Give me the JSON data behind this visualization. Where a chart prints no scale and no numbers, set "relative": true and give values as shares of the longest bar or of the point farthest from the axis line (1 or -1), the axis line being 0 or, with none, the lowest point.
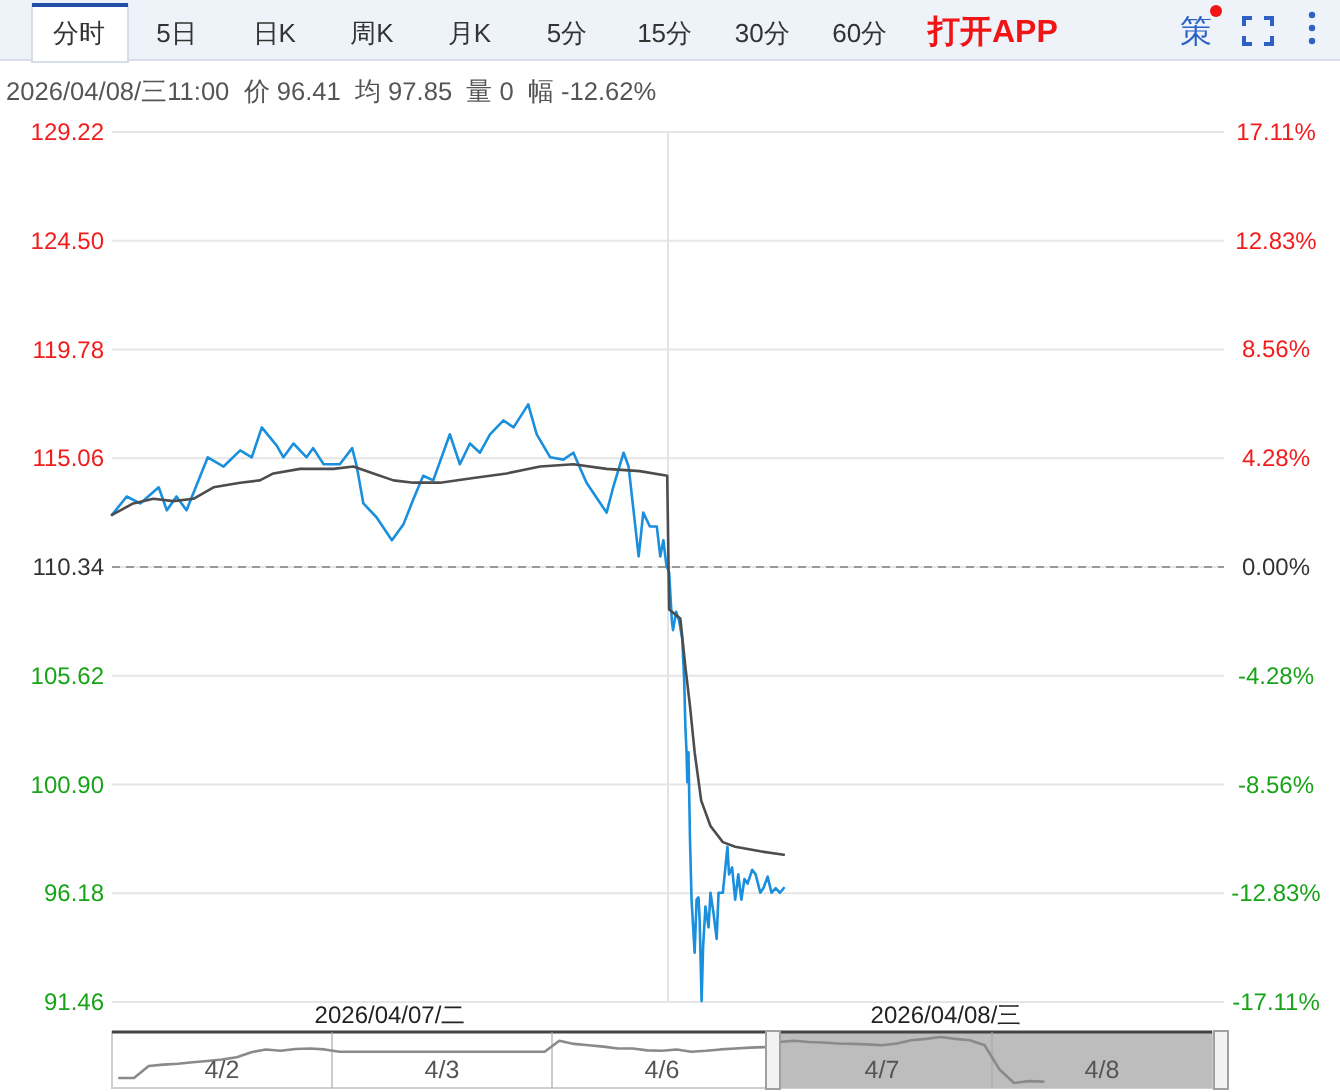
{
  "chart_data": [
    {
      "type": "line",
      "subtitle": "2026/04/08/三11:00  价 96.41  均 97.85  量 0  幅 -12.62%",
      "annotations": [
        "分时",
        "5日",
        "日K",
        "周K",
        "月K",
        "5分",
        "15分",
        "30分",
        "60分",
        "打开APP",
        "策"
      ],
      "x": [
        "2026-04-07T06:00",
        "2026-04-07T06:38",
        "2026-04-07T07:13",
        "2026-04-07T08:01",
        "2026-04-07T08:22",
        "2026-04-07T08:47",
        "2026-04-07T09:13",
        "2026-04-07T10:08",
        "2026-04-07T10:49",
        "2026-04-07T11:32",
        "2026-04-07T12:02",
        "2026-04-07T12:28",
        "2026-04-07T13:07",
        "2026-04-07T13:24",
        "2026-04-07T13:50",
        "2026-04-07T14:24",
        "2026-04-07T14:41",
        "2026-04-07T15:08",
        "2026-04-07T15:50",
        "2026-04-07T16:22",
        "2026-04-07T16:34",
        "2026-04-07T16:51",
        "2026-04-07T17:25",
        "2026-04-07T18:05",
        "2026-04-07T18:35",
        "2026-04-07T19:01",
        "2026-04-07T19:26",
        "2026-04-07T19:52",
        "2026-04-07T20:35",
        "2026-04-07T21:01",
        "2026-04-07T21:27",
        "2026-04-07T21:53",
        "2026-04-07T22:19",
        "2026-04-07T22:54",
        "2026-04-07T23:20",
        "2026-04-07T23:58",
        "2026-04-08T00:20",
        "2026-04-08T00:55",
        "2026-04-08T01:29",
        "2026-04-08T01:55",
        "2026-04-08T02:29",
        "2026-04-08T03:21",
        "2026-04-08T03:38",
        "2026-04-08T04:05",
        "2026-04-08T04:18",
        "2026-04-08T04:44",
        "2026-04-08T04:56",
        "2026-04-08T05:13",
        "2026-04-08T05:31",
        "2026-04-08T05:40",
        "2026-04-08T05:48",
        "2026-04-08T05:56",
        "2026-04-08T06:03",
        "2026-04-08T06:10",
        "2026-04-08T06:13",
        "2026-04-08T06:21",
        "2026-04-08T06:29",
        "2026-04-08T06:37",
        "2026-04-08T06:42",
        "2026-04-08T06:45",
        "2026-04-08T06:48",
        "2026-04-08T06:50",
        "2026-04-08T06:53",
        "2026-04-08T06:57",
        "2026-04-08T07:01",
        "2026-04-08T07:09",
        "2026-04-08T07:14",
        "2026-04-08T07:19",
        "2026-04-08T07:22",
        "2026-04-08T07:27",
        "2026-04-08T07:31",
        "2026-04-08T07:37",
        "2026-04-08T07:45",
        "2026-04-08T07:50",
        "2026-04-08T07:58",
        "2026-04-08T08:06",
        "2026-04-08T08:11",
        "2026-04-08T08:22",
        "2026-04-08T08:34",
        "2026-04-08T08:38",
        "2026-04-08T08:46",
        "2026-04-08T08:54",
        "2026-04-08T09:02",
        "2026-04-08T09:10",
        "2026-04-08T09:18",
        "2026-04-08T09:26",
        "2026-04-08T09:38",
        "2026-04-08T09:47",
        "2026-04-08T09:59",
        "2026-04-08T10:07",
        "2026-04-08T10:18",
        "2026-04-08T10:28",
        "2026-04-08T10:39",
        "2026-04-08T10:50",
        "2026-04-08T11:00"
      ],
      "series": [
        {
          "color": "#1a8fdd",
          "values": [
            112.6,
            113.4,
            113.1,
            113.8,
            112.8,
            113.4,
            112.8,
            115.1,
            114.7,
            115.4,
            115.1,
            116.4,
            115.6,
            115.1,
            115.7,
            115.1,
            115.5,
            114.8,
            114.8,
            115.5,
            114.7,
            113.1,
            112.5,
            111.5,
            112.2,
            113.3,
            114.3,
            114.1,
            116.1,
            114.8,
            115.7,
            115.3,
            116.1,
            116.7,
            116.4,
            117.4,
            116.1,
            115.1,
            115.0,
            115.3,
            114.0,
            112.7,
            113.8,
            115.3,
            114.7,
            110.8,
            112.7,
            112.1,
            112.1,
            110.8,
            111.5,
            110.4,
            110.1,
            108.0,
            107.6,
            108.4,
            108.0,
            107.2,
            105.4,
            103.4,
            102.3,
            101.0,
            102.3,
            98.5,
            95.9,
            93.6,
            95.9,
            96.0,
            95.0,
            91.5,
            93.9,
            95.6,
            94.7,
            96.2,
            95.3,
            94.2,
            96.2,
            96.2,
            98.2,
            97.0,
            97.3,
            95.9,
            97.0,
            95.9,
            96.8,
            96.6,
            97.2,
            97.0,
            96.2,
            96.4,
            96.9,
            96.2,
            96.4,
            96.2,
            96.41
          ]
        },
        {
          "color": "#4d4d4d",
          "x": [
            "2026-04-07T06:00",
            "2026-04-07T06:55",
            "2026-04-07T07:47",
            "2026-04-07T08:39",
            "2026-04-07T09:31",
            "2026-04-07T10:23",
            "2026-04-07T11:32",
            "2026-04-07T12:23",
            "2026-04-07T12:58",
            "2026-04-07T14:07",
            "2026-04-07T15:34",
            "2026-04-07T16:25",
            "2026-04-07T17:17",
            "2026-04-07T18:09",
            "2026-04-07T19:01",
            "2026-04-07T20:10",
            "2026-04-07T21:36",
            "2026-04-07T23:02",
            "2026-04-08T00:29",
            "2026-04-08T01:55",
            "2026-04-08T03:21",
            "2026-04-08T04:47",
            "2026-04-08T05:58",
            "2026-04-08T06:03",
            "2026-04-08T06:32",
            "2026-04-08T06:45",
            "2026-04-08T06:57",
            "2026-04-08T07:09",
            "2026-04-08T07:26",
            "2026-04-08T07:50",
            "2026-04-08T08:22",
            "2026-04-08T08:54",
            "2026-04-08T09:59",
            "2026-04-08T11:00"
          ],
          "values": [
            112.6,
            113.1,
            113.3,
            113.2,
            113.3,
            113.8,
            114.0,
            114.1,
            114.4,
            114.6,
            114.6,
            114.7,
            114.4,
            114.1,
            114.0,
            114.0,
            114.2,
            114.4,
            114.7,
            114.8,
            114.6,
            114.5,
            114.3,
            108.5,
            108.1,
            106.0,
            104.3,
            102.3,
            100.2,
            99.1,
            98.4,
            98.2,
            98.0,
            97.85
          ]
        }
      ],
      "xlim": [
        "2026-04-07T06:00",
        "2026-04-09T06:00"
      ],
      "xticks": [
        {
          "value": "2026-04-07T18:00",
          "label": "2026/04/07/二"
        },
        {
          "value": "2026-04-08T18:00",
          "label": "2026/04/08/三"
        }
      ],
      "ylim": [
        91.46,
        129.22
      ],
      "yticks": [
        129.22,
        {
          "value": 124.5,
          "label": "124.50"
        },
        119.78,
        115.06,
        110.34,
        105.62,
        {
          "value": 100.9,
          "label": "100.90"
        },
        96.18,
        91.46
      ],
      "y2lim": [
        -17.11,
        17.11
      ],
      "y2ticks": [
        {
          "value": 17.11,
          "label": "17.11%"
        },
        {
          "value": 12.83,
          "label": "12.83%"
        },
        {
          "value": 8.56,
          "label": "8.56%"
        },
        {
          "value": 4.28,
          "label": "4.28%"
        },
        {
          "value": 0,
          "label": "0.00%"
        },
        {
          "value": -4.28,
          "label": "-4.28%"
        },
        {
          "value": -8.56,
          "label": "-8.56%"
        },
        {
          "value": -12.83,
          "label": "-12.83%"
        },
        {
          "value": -17.11,
          "label": "-17.11%"
        }
      ],
      "grid": "y",
      "ref_lines": [
        {
          "axis": "y",
          "value": 110.34,
          "line_style": "dashed",
          "color": "#999999"
        },
        {
          "axis": "x",
          "value": "2026-04-08T06:00",
          "color": "#e3e3e3"
        }
      ]
    },
    {
      "type": "line",
      "relative": true,
      "categories": [
        null,
        null,
        null,
        null,
        null,
        null,
        null,
        "4/2",
        null,
        null,
        null,
        null,
        null,
        null,
        null,
        null,
        null,
        null,
        null,
        null,
        null,
        null,
        "4/3",
        null,
        null,
        null,
        null,
        null,
        null,
        null,
        null,
        null,
        null,
        null,
        null,
        null,
        null,
        "4/6",
        null,
        null,
        null,
        null,
        null,
        null,
        null,
        null,
        null,
        null,
        null,
        null,
        null,
        null,
        "4/7",
        null,
        null,
        null,
        null,
        null,
        null,
        null,
        null,
        null,
        null,
        null,
        null,
        null,
        null,
        "4/8",
        null,
        null,
        null,
        null,
        null,
        null,
        null
      ],
      "series": [
        {
          "color": "#8a8a8a",
          "values": [
            0.11,
            0.11,
            0.37,
            0.4,
            0.42,
            0.45,
            0.48,
            0.51,
            0.56,
            0.67,
            0.73,
            0.7,
            0.74,
            0.75,
            0.73,
            0.68,
            0.68,
            0.68,
            0.68,
            0.68,
            0.68,
            0.68,
            0.68,
            0.68,
            0.68,
            0.68,
            0.68,
            0.68,
            0.68,
            0.68,
            0.92,
            0.85,
            0.82,
            0.79,
            0.75,
            0.75,
            0.71,
            0.7,
            0.73,
            0.68,
            0.7,
            0.73,
            0.75,
            0.77,
            0.78,
            0.89,
            0.92,
            0.89,
            0.88,
            0.86,
            0.85,
            0.84,
            0.82,
            0.86,
            0.93,
            0.96,
            1,
            0.96,
            0.93,
            0.82,
            0.3,
            0,
            0.04,
            0.03,
            null,
            null,
            null,
            null,
            null,
            null,
            null,
            null,
            null,
            null,
            null
          ]
        }
      ],
      "grid": "x"
    }
  ]
}
